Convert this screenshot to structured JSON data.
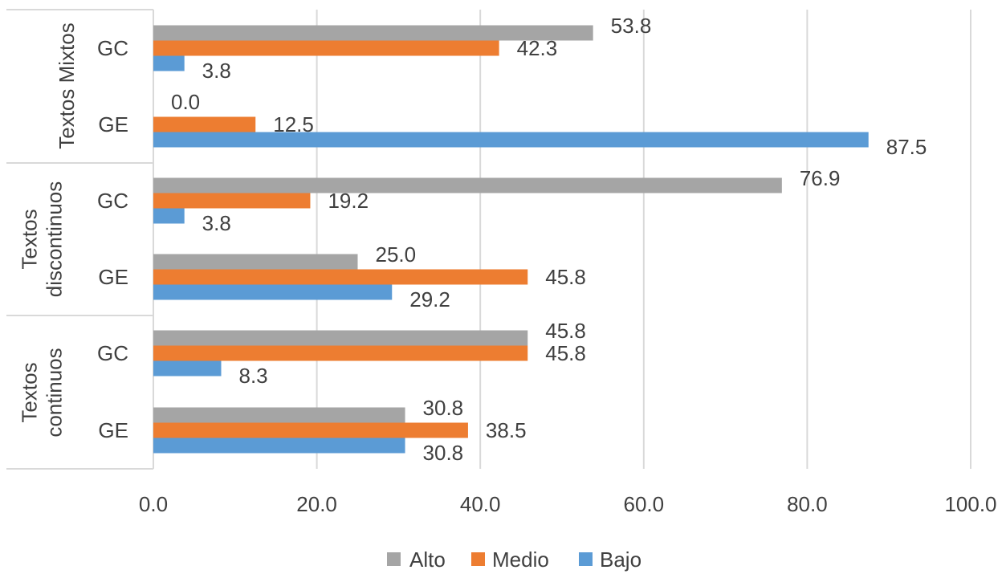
{
  "chart_data": {
    "type": "bar",
    "orientation": "horizontal",
    "groups": [
      {
        "label": "Textos Mixtos",
        "categories": [
          {
            "label": "GC",
            "values": {
              "Alto": 53.8,
              "Medio": 42.3,
              "Bajo": 3.8
            },
            "labels": {
              "Alto": "53.8",
              "Medio": "42.3",
              "Bajo": "3.8"
            }
          },
          {
            "label": "GE",
            "values": {
              "Alto": 0.0,
              "Medio": 12.5,
              "Bajo": 87.5
            },
            "labels": {
              "Alto": "0.0",
              "Medio": "12.5",
              "Bajo": "87.5"
            }
          }
        ]
      },
      {
        "label": "Textos discontinuos",
        "categories": [
          {
            "label": "GC",
            "values": {
              "Alto": 76.9,
              "Medio": 19.2,
              "Bajo": 3.8
            },
            "labels": {
              "Alto": "76.9",
              "Medio": "19.2",
              "Bajo": "3.8"
            }
          },
          {
            "label": "GE",
            "values": {
              "Alto": 25.0,
              "Medio": 45.8,
              "Bajo": 29.2
            },
            "labels": {
              "Alto": "25.0",
              "Medio": "45.8",
              "Bajo": "29.2"
            }
          }
        ]
      },
      {
        "label": "Textos continuos",
        "categories": [
          {
            "label": "GC",
            "values": {
              "Alto": 45.8,
              "Medio": 45.8,
              "Bajo": 8.3
            },
            "labels": {
              "Alto": "45.8",
              "Medio": "45.8",
              "Bajo": "8.3"
            }
          },
          {
            "label": "GE",
            "values": {
              "Alto": 30.8,
              "Medio": 38.5,
              "Bajo": 30.8
            },
            "labels": {
              "Alto": "30.8",
              "Medio": "38.5",
              "Bajo": "30.8"
            }
          }
        ]
      }
    ],
    "series": [
      {
        "name": "Alto",
        "color": "#a5a5a5"
      },
      {
        "name": "Medio",
        "color": "#ed7d31"
      },
      {
        "name": "Bajo",
        "color": "#5b9bd5"
      }
    ],
    "xlim": [
      0,
      100
    ],
    "xticks": [
      "0.0",
      "20.0",
      "40.0",
      "60.0",
      "80.0",
      "100.0"
    ],
    "grid": true,
    "legend_position": "bottom"
  }
}
